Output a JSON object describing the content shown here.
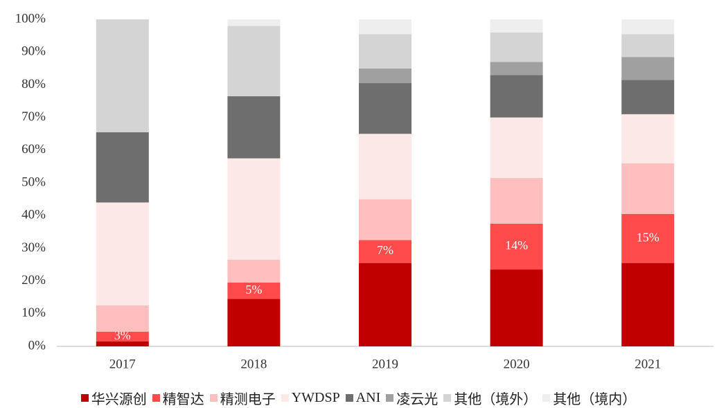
{
  "chart_data": {
    "type": "stacked_bar",
    "categories": [
      "2017",
      "2018",
      "2019",
      "2020",
      "2021"
    ],
    "series": [
      {
        "name": "华兴源创",
        "color": "#c00000",
        "values": [
          1.5,
          14.5,
          25.5,
          23.5,
          25.5
        ]
      },
      {
        "name": "精智达",
        "color": "#ff4b4b",
        "values": [
          3,
          5,
          7,
          14,
          15
        ],
        "value_labels": [
          "3%",
          "5%",
          "7%",
          "14%",
          "15%"
        ]
      },
      {
        "name": "精测电子",
        "color": "#ffbfbf",
        "values": [
          8,
          7,
          12.5,
          14,
          15.5
        ]
      },
      {
        "name": "YWDSP",
        "color": "#fde8e8",
        "values": [
          31.5,
          31,
          20,
          18.5,
          15
        ]
      },
      {
        "name": "ANI",
        "color": "#6e6e6e",
        "values": [
          21.5,
          19,
          15.5,
          13,
          10.5
        ]
      },
      {
        "name": "凌云光",
        "color": "#a0a0a0",
        "values": [
          0,
          0,
          4.5,
          4,
          7
        ]
      },
      {
        "name": "其他（境外）",
        "color": "#d4d4d4",
        "values": [
          34.5,
          21.5,
          10.5,
          9,
          7
        ]
      },
      {
        "name": "其他（境内）",
        "color": "#eeeeee",
        "values": [
          0,
          2,
          4.5,
          4,
          4.5
        ]
      }
    ],
    "ylim": [
      0,
      100
    ],
    "yticks": [
      {
        "value": 0,
        "label": "0%"
      },
      {
        "value": 10,
        "label": "10%"
      },
      {
        "value": 20,
        "label": "20%"
      },
      {
        "value": 30,
        "label": "30%"
      },
      {
        "value": 40,
        "label": "40%"
      },
      {
        "value": 50,
        "label": "50%"
      },
      {
        "value": 60,
        "label": "60%"
      },
      {
        "value": 70,
        "label": "70%"
      },
      {
        "value": 80,
        "label": "80%"
      },
      {
        "value": 90,
        "label": "90%"
      },
      {
        "value": 100,
        "label": "100%"
      }
    ],
    "grid": false
  }
}
